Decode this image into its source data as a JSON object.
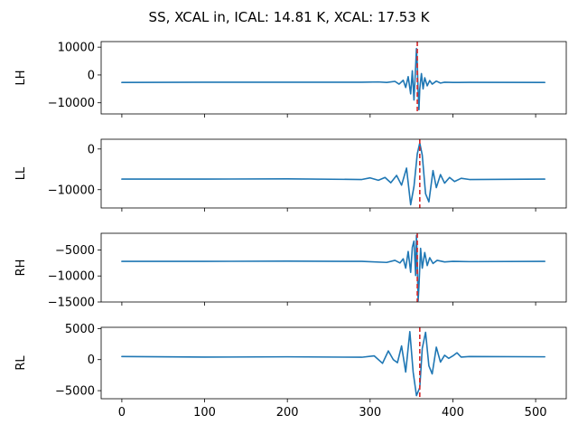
{
  "figure": {
    "title": "SS, XCAL in, ICAL: 14.81 K, XCAL: 17.53 K"
  },
  "colors": {
    "series": "#1f77b4",
    "marker_line": "#d62728"
  },
  "chart_data": [
    {
      "type": "line",
      "ylabel": "LH",
      "xlim": [
        -25,
        537
      ],
      "ylim": [
        -14000,
        12000
      ],
      "yticks": [
        10000,
        0,
        -10000
      ],
      "ytick_labels": [
        "10000",
        "0",
        "−10000"
      ],
      "baseline": -2700,
      "center": 357,
      "marker_x": 357,
      "series": [
        {
          "x": [
            0,
            100,
            200,
            290,
            310,
            320,
            330,
            335,
            340,
            343,
            346,
            349,
            351,
            353,
            355,
            356,
            357,
            358,
            359,
            360,
            362,
            364,
            366,
            369,
            372,
            375,
            380,
            385,
            390,
            400,
            420,
            511
          ],
          "y": [
            -2700,
            -2600,
            -2600,
            -2600,
            -2500,
            -2700,
            -2300,
            -3300,
            -1900,
            -4500,
            -600,
            -6800,
            1500,
            -9000,
            3000,
            9500,
            4000,
            -6000,
            -12500,
            -5000,
            500,
            -5000,
            -1000,
            -3900,
            -2000,
            -3300,
            -2200,
            -2900,
            -2600,
            -2700,
            -2650,
            -2700
          ]
        }
      ]
    },
    {
      "type": "line",
      "ylabel": "LL",
      "xlim": [
        -25,
        537
      ],
      "ylim": [
        -14500,
        2400
      ],
      "yticks": [
        0,
        -10000
      ],
      "ytick_labels": [
        "0",
        "−10000"
      ],
      "baseline": -7400,
      "center": 360,
      "marker_x": 360,
      "series": [
        {
          "x": [
            0,
            100,
            200,
            290,
            300,
            310,
            318,
            325,
            332,
            338,
            344,
            349,
            353,
            357,
            360,
            363,
            367,
            371,
            376,
            380,
            385,
            390,
            396,
            402,
            410,
            420,
            511
          ],
          "y": [
            -7400,
            -7400,
            -7350,
            -7500,
            -7100,
            -7700,
            -7000,
            -8300,
            -6500,
            -8900,
            -4700,
            -13700,
            -9200,
            -1200,
            1500,
            -1500,
            -11000,
            -13000,
            -5300,
            -9500,
            -6300,
            -8400,
            -7000,
            -8000,
            -7200,
            -7500,
            -7400
          ]
        }
      ]
    },
    {
      "type": "line",
      "ylabel": "RH",
      "xlim": [
        -25,
        537
      ],
      "ylim": [
        -15000,
        -1800
      ],
      "yticks": [
        -5000,
        -10000,
        -15000
      ],
      "ytick_labels": [
        "−5000",
        "−10000",
        "−15000"
      ],
      "baseline": -7200,
      "center": 357,
      "marker_x": 357,
      "series": [
        {
          "x": [
            0,
            100,
            200,
            290,
            320,
            330,
            336,
            340,
            343,
            346,
            349,
            351,
            353,
            355,
            356,
            357,
            358,
            359,
            361,
            363,
            366,
            369,
            372,
            376,
            381,
            390,
            400,
            420,
            511
          ],
          "y": [
            -7200,
            -7200,
            -7150,
            -7200,
            -7400,
            -7000,
            -7500,
            -6700,
            -8500,
            -5300,
            -9300,
            -4500,
            -3300,
            -9900,
            -2200,
            -7500,
            -14800,
            -12000,
            -4700,
            -8500,
            -5500,
            -8000,
            -6500,
            -7600,
            -7000,
            -7300,
            -7200,
            -7250,
            -7200
          ]
        }
      ]
    },
    {
      "type": "line",
      "ylabel": "RL",
      "xlim": [
        -25,
        537
      ],
      "ylim": [
        -6300,
        5200
      ],
      "yticks": [
        5000,
        0,
        -5000
      ],
      "ytick_labels": [
        "5000",
        "0",
        "−5000"
      ],
      "baseline": 500,
      "center": 360,
      "marker_x": 360,
      "series": [
        {
          "x": [
            0,
            100,
            200,
            290,
            305,
            315,
            322,
            328,
            333,
            338,
            343,
            348,
            352,
            356,
            360,
            363,
            367,
            371,
            375,
            380,
            385,
            390,
            395,
            400,
            405,
            410,
            420,
            511
          ],
          "y": [
            500,
            400,
            450,
            380,
            600,
            -600,
            1400,
            0,
            -500,
            2200,
            -2000,
            4500,
            -2000,
            -5800,
            -4500,
            1800,
            4400,
            -1000,
            -2300,
            2000,
            -400,
            700,
            200,
            600,
            1100,
            400,
            500,
            450
          ]
        }
      ]
    }
  ],
  "xaxis": {
    "ticks": [
      0,
      100,
      200,
      300,
      400,
      500
    ],
    "tick_labels": [
      "0",
      "100",
      "200",
      "300",
      "400",
      "500"
    ]
  }
}
